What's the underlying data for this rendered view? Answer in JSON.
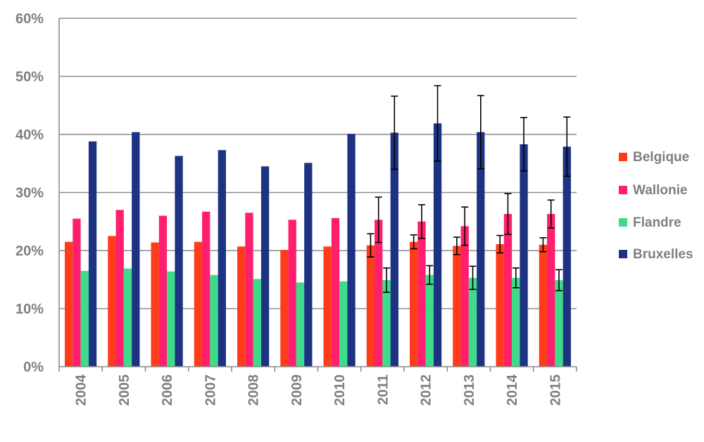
{
  "chart_data": {
    "type": "bar",
    "categories": [
      "2004",
      "2005",
      "2006",
      "2007",
      "2008",
      "2009",
      "2010",
      "2011",
      "2012",
      "2013",
      "2014",
      "2015"
    ],
    "y_tick_labels": [
      "0%",
      "10%",
      "20%",
      "30%",
      "40%",
      "50%",
      "60%"
    ],
    "ylim": [
      0,
      60
    ],
    "ylabel": "",
    "xlabel": "",
    "grid": true,
    "legend_position": "right",
    "series": [
      {
        "name": "Belgique",
        "color": "#ff3c1a",
        "values": [
          21.5,
          22.5,
          21.4,
          21.5,
          20.7,
          20.1,
          20.7,
          20.9,
          21.5,
          20.8,
          21.1,
          21.0
        ],
        "errors": [
          null,
          null,
          null,
          null,
          null,
          null,
          null,
          2.0,
          1.2,
          1.5,
          1.5,
          1.2
        ]
      },
      {
        "name": "Wallonie",
        "color": "#ff1f6e",
        "values": [
          25.5,
          27.0,
          26.0,
          26.7,
          26.5,
          25.3,
          25.6,
          25.3,
          25.0,
          24.2,
          26.3,
          26.3
        ],
        "errors": [
          null,
          null,
          null,
          null,
          null,
          null,
          null,
          3.9,
          2.9,
          3.3,
          3.5,
          2.4
        ]
      },
      {
        "name": "Flandre",
        "color": "#3ddc8a",
        "values": [
          16.5,
          16.9,
          16.4,
          15.8,
          15.1,
          14.5,
          14.7,
          14.9,
          15.8,
          15.3,
          15.3,
          14.9
        ],
        "errors": [
          null,
          null,
          null,
          null,
          null,
          null,
          null,
          2.1,
          1.6,
          2.0,
          1.7,
          1.8
        ]
      },
      {
        "name": "Bruxelles",
        "color": "#1e3282",
        "values": [
          38.8,
          40.4,
          36.3,
          37.3,
          34.5,
          35.1,
          40.1,
          40.3,
          41.9,
          40.4,
          38.3,
          37.9
        ],
        "errors": [
          null,
          null,
          null,
          null,
          null,
          null,
          null,
          6.3,
          6.5,
          6.3,
          4.6,
          5.1
        ]
      }
    ]
  }
}
